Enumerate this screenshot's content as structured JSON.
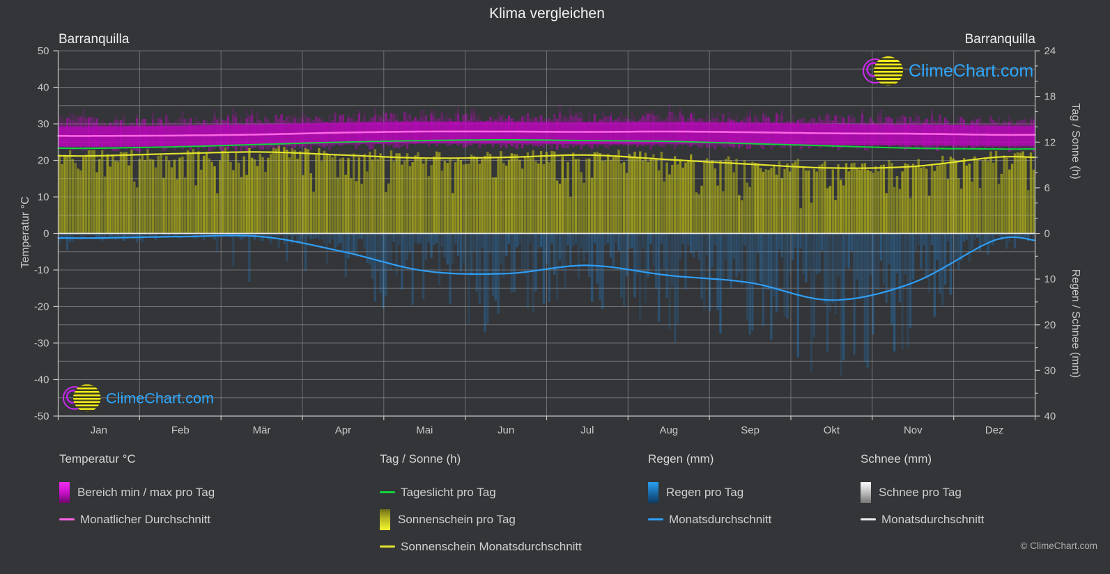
{
  "title": "Klima vergleichen",
  "station_left": "Barranquilla",
  "station_right": "Barranquilla",
  "watermark_text": "ClimeChart.com",
  "copyright": "© ClimeChart.com",
  "axes": {
    "left": {
      "label": "Temperatur °C",
      "range": [
        -50,
        50
      ],
      "ticks": [
        50,
        40,
        30,
        20,
        10,
        0,
        -10,
        -20,
        -30,
        -40,
        -50
      ]
    },
    "right_top": {
      "label": "Tag / Sonne (h)",
      "range": [
        0,
        24
      ],
      "ticks": [
        24,
        18,
        12,
        6,
        0
      ]
    },
    "right_bottom": {
      "label": "Regen / Schnee (mm)",
      "range": [
        0,
        40
      ],
      "direction": "down",
      "ticks": [
        10,
        20,
        30,
        40
      ]
    }
  },
  "legend": {
    "groups": [
      {
        "header": "Temperatur °C",
        "items": [
          {
            "swatch": "gradient-magenta",
            "label": "Bereich min / max pro Tag"
          },
          {
            "swatch": "line-magenta",
            "label": "Monatlicher Durchschnitt"
          }
        ]
      },
      {
        "header": "Tag / Sonne (h)",
        "items": [
          {
            "swatch": "line-green",
            "label": "Tageslicht pro Tag"
          },
          {
            "swatch": "gradient-yellow",
            "label": "Sonnenschein pro Tag"
          },
          {
            "swatch": "line-yellow",
            "label": "Sonnenschein Monatsdurchschnitt"
          }
        ]
      },
      {
        "header": "Regen (mm)",
        "items": [
          {
            "swatch": "gradient-blue",
            "label": "Regen pro Tag"
          },
          {
            "swatch": "line-blue",
            "label": "Monatsdurchschnitt"
          }
        ]
      },
      {
        "header": "Schnee (mm)",
        "items": [
          {
            "swatch": "gradient-snow",
            "label": "Schnee pro Tag"
          },
          {
            "swatch": "line-white",
            "label": "Monatsdurchschnitt"
          }
        ]
      }
    ]
  },
  "chart_data": {
    "type": "area",
    "title": "Klima vergleichen",
    "station": "Barranquilla",
    "categories": [
      "Jan",
      "Feb",
      "Mär",
      "Apr",
      "Mai",
      "Jun",
      "Jul",
      "Aug",
      "Sep",
      "Okt",
      "Nov",
      "Dez"
    ],
    "axis_ranges": {
      "temperature_c": [
        -50,
        50
      ],
      "day_sun_h": [
        0,
        24
      ],
      "rain_snow_mm": [
        0,
        40
      ]
    },
    "grid": true,
    "series": [
      {
        "name": "Temperatur Monatlicher Durchschnitt",
        "axis": "temperature_c",
        "unit": "°C",
        "type": "line",
        "color": "#f966e3",
        "values": [
          26.7,
          26.8,
          27.1,
          27.6,
          27.9,
          27.9,
          27.8,
          27.9,
          27.7,
          27.4,
          27.3,
          27.0
        ]
      },
      {
        "name": "Temperatur Tagesbereich min",
        "axis": "temperature_c",
        "unit": "°C",
        "type": "band-lower",
        "color": "#b806b8",
        "values": [
          23.8,
          23.9,
          24.2,
          24.6,
          24.8,
          24.7,
          24.5,
          24.6,
          24.5,
          24.3,
          24.2,
          24.0
        ]
      },
      {
        "name": "Temperatur Tagesbereich max",
        "axis": "temperature_c",
        "unit": "°C",
        "type": "band-upper",
        "color": "#b806b8",
        "values": [
          29.3,
          29.5,
          29.9,
          30.3,
          30.6,
          30.5,
          30.4,
          30.5,
          30.3,
          30.0,
          29.8,
          29.5
        ]
      },
      {
        "name": "Tageslicht pro Tag",
        "axis": "day_sun_h",
        "unit": "h",
        "type": "line",
        "color": "#12d43c",
        "values": [
          11.2,
          11.4,
          11.7,
          12.0,
          12.2,
          12.3,
          12.2,
          12.1,
          11.8,
          11.5,
          11.2,
          11.1
        ]
      },
      {
        "name": "Sonnenschein Monatsdurchschnitt",
        "axis": "day_sun_h",
        "unit": "h",
        "type": "line",
        "color": "#e3e32e",
        "values": [
          10.2,
          10.5,
          10.7,
          10.3,
          9.9,
          10.0,
          10.3,
          9.7,
          9.1,
          8.6,
          8.8,
          10.0
        ]
      },
      {
        "name": "Sonnenschein pro Tag",
        "axis": "day_sun_h",
        "unit": "h",
        "type": "daily-bars",
        "color": "#a3a31b",
        "values": [
          10.2,
          10.5,
          10.7,
          10.3,
          9.9,
          10.0,
          10.3,
          9.7,
          9.1,
          8.6,
          8.8,
          10.0
        ]
      },
      {
        "name": "Regen Monatsdurchschnitt",
        "axis": "rain_snow_mm",
        "unit": "mm",
        "type": "line",
        "color": "#2f9ef7",
        "values": [
          1.0,
          0.7,
          0.7,
          4.0,
          8.2,
          8.8,
          7.0,
          9.2,
          10.8,
          14.6,
          10.8,
          1.5
        ]
      },
      {
        "name": "Regen pro Tag",
        "axis": "rain_snow_mm",
        "unit": "mm",
        "type": "daily-bars",
        "color": "#2476bc",
        "values": [
          1.0,
          0.7,
          0.7,
          4.0,
          8.2,
          8.8,
          7.0,
          9.2,
          10.8,
          14.6,
          10.8,
          1.5
        ]
      },
      {
        "name": "Schnee Monatsdurchschnitt",
        "axis": "rain_snow_mm",
        "unit": "mm",
        "type": "line",
        "color": "#eeeeee",
        "values": [
          0,
          0,
          0,
          0,
          0,
          0,
          0,
          0,
          0,
          0,
          0,
          0
        ]
      }
    ]
  }
}
